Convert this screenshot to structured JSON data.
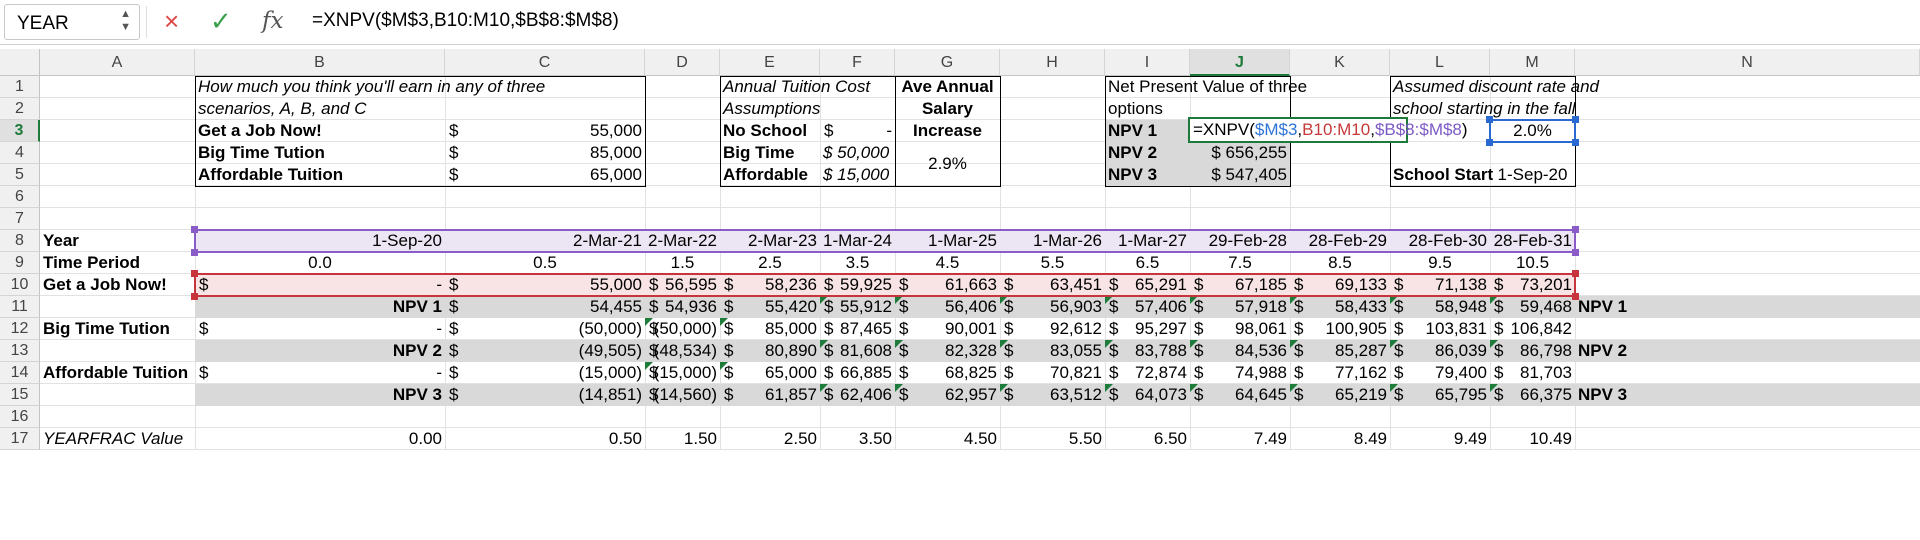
{
  "formula_bar": {
    "name_box": "YEAR",
    "cancel_icon": "×",
    "confirm_icon": "✓",
    "fx_label": "fx",
    "formula": "=XNPV($M$3,B10:M10,$B$8:$M$8)"
  },
  "columns": [
    "A",
    "B",
    "C",
    "D",
    "E",
    "F",
    "G",
    "H",
    "I",
    "J",
    "K",
    "L",
    "M",
    "N"
  ],
  "rows": [
    "1",
    "2",
    "3",
    "4",
    "5",
    "6",
    "7",
    "8",
    "9",
    "10",
    "11",
    "12",
    "13",
    "14",
    "15",
    "16",
    "17"
  ],
  "colors": {
    "selection_green": "#1e7a3a",
    "range_purple": "#8a5cc8",
    "range_red": "#c8343b",
    "range_blue": "#2a6ad0",
    "ref_blue": "#2e74d4",
    "ref_red": "#c63a3a",
    "ref_purple": "#7c59c4"
  },
  "scenarios": {
    "header_line1": "How much you think you'll earn in any of three",
    "header_line2": "scenarios, A, B, and C",
    "rows": [
      {
        "label": "Get a Job Now!",
        "currency": "$",
        "value": "55,000"
      },
      {
        "label": "Big Time Tution",
        "currency": "$",
        "value": "85,000"
      },
      {
        "label": "Affordable Tuition",
        "currency": "$",
        "value": "65,000"
      }
    ]
  },
  "tuition": {
    "header_line1": "Annual Tuition Cost",
    "header_line2": "Assumptions",
    "rows": [
      {
        "label": "No School",
        "currency": "$",
        "value": "-"
      },
      {
        "label": "Big Time",
        "value": "$ 50,000"
      },
      {
        "label": "Affordable",
        "value": "$ 15,000"
      }
    ]
  },
  "salary": {
    "line1": "Ave Annual",
    "line2": "Salary",
    "line3": "Increase",
    "value": "2.9%"
  },
  "npv_summary": {
    "header_line1": "Net Present Value of three",
    "header_line2": "options",
    "rows": [
      {
        "label": "NPV 1",
        "value": ""
      },
      {
        "label": "NPV 2",
        "value": "$ 656,255"
      },
      {
        "label": "NPV 3",
        "value": "$ 547,405"
      }
    ]
  },
  "editing": {
    "prefix": "=XNPV(",
    "ref1": "$M$3",
    "comma1": ",",
    "ref2": "B10:M10",
    "comma2": ",",
    "ref3": "$B$8:$M$8",
    "suffix": ")"
  },
  "discount": {
    "header_line1": "Assumed discount rate and",
    "header_line2": "school starting in the fall",
    "rate": "2.0%",
    "start_label": "School Start",
    "start_value": "1-Sep-20"
  },
  "table": {
    "year_label": "Year",
    "dates": [
      "1-Sep-20",
      "2-Mar-21",
      "2-Mar-22",
      "2-Mar-23",
      "1-Mar-24",
      "1-Mar-25",
      "1-Mar-26",
      "1-Mar-27",
      "29-Feb-28",
      "28-Feb-29",
      "28-Feb-30",
      "28-Feb-31"
    ],
    "period_label": "Time Period",
    "periods": [
      "0.0",
      "0.5",
      "1.5",
      "2.5",
      "3.5",
      "4.5",
      "5.5",
      "6.5",
      "7.5",
      "8.5",
      "9.5",
      "10.5"
    ],
    "job_label": "Get a Job Now!",
    "job": [
      "-",
      "55,000",
      "56,595",
      "58,236",
      "59,925",
      "61,663",
      "63,451",
      "65,291",
      "67,185",
      "69,133",
      "71,138",
      "73,201"
    ],
    "npv1_label": "NPV 1",
    "npv1": [
      "",
      "54,455",
      "54,936",
      "55,420",
      "55,912",
      "56,406",
      "56,903",
      "57,406",
      "57,918",
      "58,433",
      "58,948",
      "59,468"
    ],
    "big_label": "Big Time Tution",
    "big": [
      "-",
      "(50,000)",
      "(50,000)",
      "85,000",
      "87,465",
      "90,001",
      "92,612",
      "95,297",
      "98,061",
      "100,905",
      "103,831",
      "106,842"
    ],
    "npv2_label": "NPV 2",
    "npv2": [
      "",
      "(49,505)",
      "(48,534)",
      "80,890",
      "81,608",
      "82,328",
      "83,055",
      "83,788",
      "84,536",
      "85,287",
      "86,039",
      "86,798"
    ],
    "aff_label": "Affordable Tuition",
    "aff": [
      "-",
      "(15,000)",
      "(15,000)",
      "65,000",
      "66,885",
      "68,825",
      "70,821",
      "72,874",
      "74,988",
      "77,162",
      "79,400",
      "81,703"
    ],
    "npv3_label": "NPV 3",
    "npv3": [
      "",
      "(14,851)",
      "(14,560)",
      "61,857",
      "62,406",
      "62,957",
      "63,512",
      "64,073",
      "64,645",
      "65,219",
      "65,795",
      "66,375"
    ],
    "yearfrac_label": "YEARFRAC Value",
    "yearfrac": [
      "0.00",
      "0.50",
      "1.50",
      "2.50",
      "3.50",
      "4.50",
      "5.50",
      "6.50",
      "7.49",
      "8.49",
      "9.49",
      "10.49"
    ],
    "currency": "$"
  }
}
